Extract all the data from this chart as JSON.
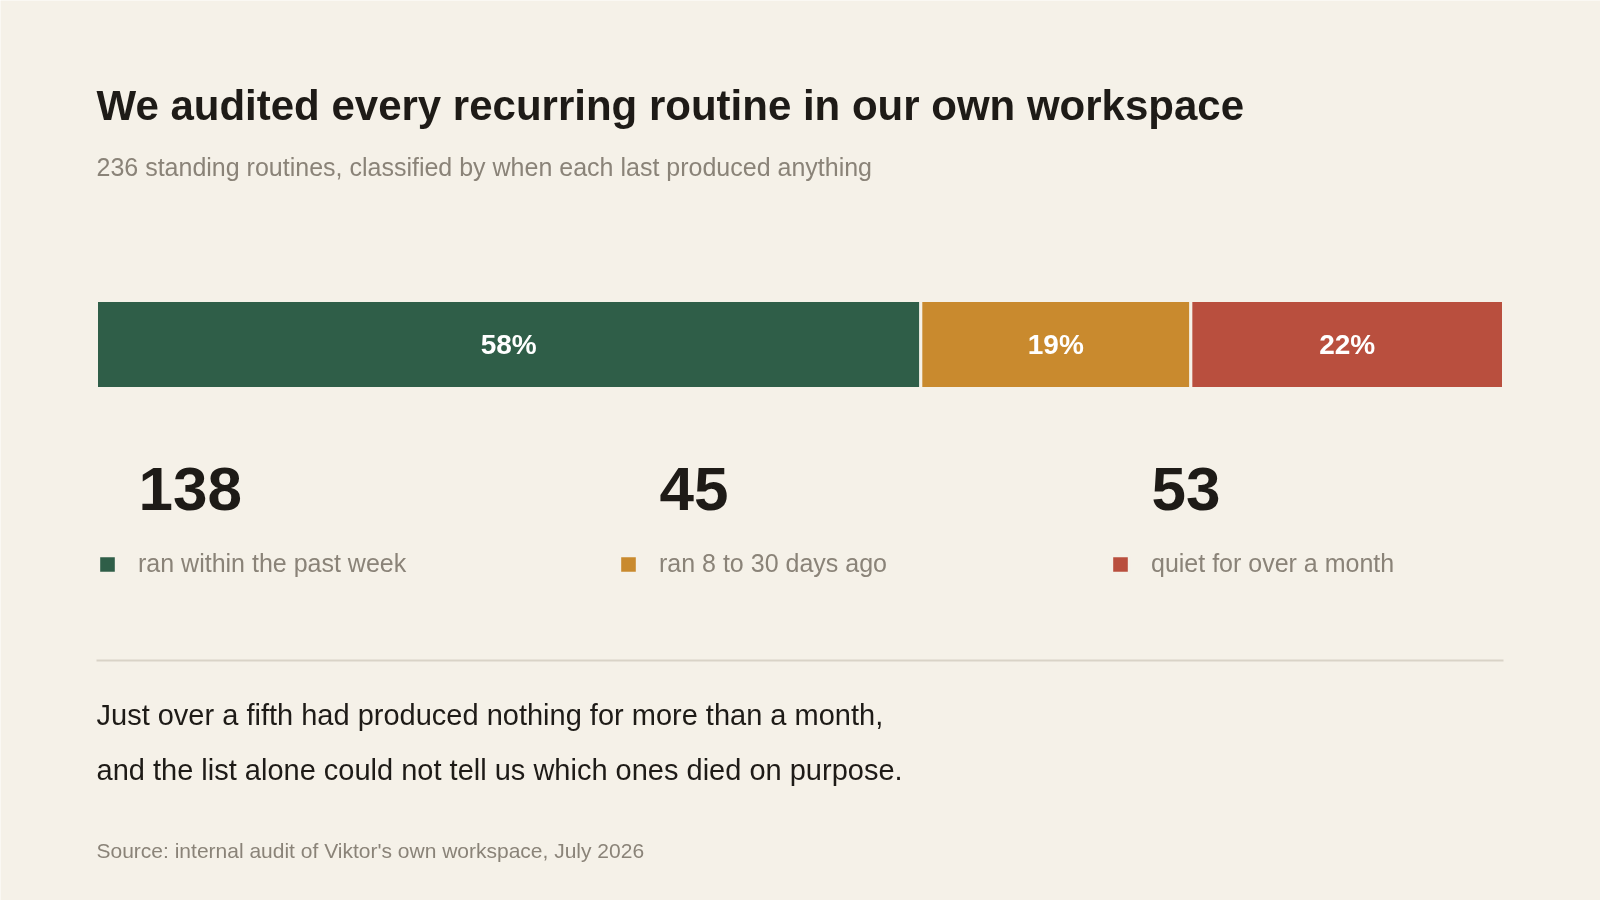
{
  "chart_data": {
    "type": "bar",
    "orientation": "horizontal",
    "stacked": true,
    "title": "We audited every recurring routine in our own workspace",
    "subtitle": "236 standing routines, classified by when each last produced anything",
    "categories": [
      null
    ],
    "tick_labels": false,
    "grid": false,
    "legend": "bottom",
    "series": [
      {
        "name": "ran within the past week",
        "color": "#2f5e48",
        "values": [
          58
        ],
        "value_labels": [
          "58%"
        ]
      },
      {
        "name": "ran 8 to 30 days ago",
        "color": "#c98a2e",
        "values": [
          19
        ],
        "value_labels": [
          "19%"
        ]
      },
      {
        "name": "quiet for over a month",
        "color": "#b94f3e",
        "values": [
          22
        ],
        "value_labels": [
          "22%"
        ]
      }
    ],
    "annotations": [
      "138",
      "45",
      "53",
      "Just over a fifth had produced nothing for more than a month,\nand the list alone could not tell us which ones died on purpose.",
      "Source: internal audit of Viktor's own workspace, July 2026"
    ]
  }
}
